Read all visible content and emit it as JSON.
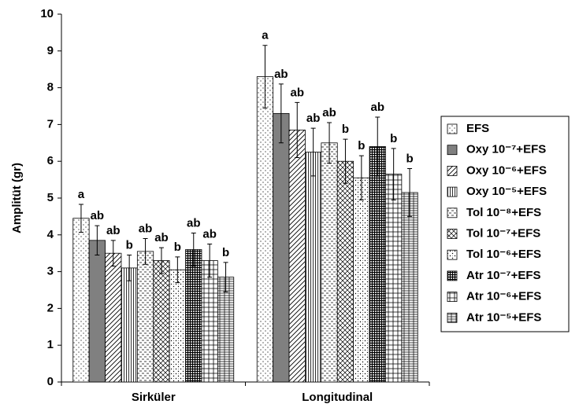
{
  "chart_data": {
    "type": "bar",
    "ylabel": "Amplitüt (gr)",
    "categories": [
      "Sirküler",
      "Longitudinal"
    ],
    "ylim": [
      0,
      10
    ],
    "yticks": [
      0,
      1,
      2,
      3,
      4,
      5,
      6,
      7,
      8,
      9,
      10
    ],
    "series": [
      {
        "name": "EFS",
        "color": "#ffffff",
        "values": [
          4.45,
          8.3
        ],
        "errors": [
          0.38,
          0.85
        ],
        "labels": [
          "a",
          "a"
        ]
      },
      {
        "name": "Oxy 10⁻⁷+EFS",
        "color": "#808080",
        "values": [
          3.85,
          7.3
        ],
        "errors": [
          0.4,
          0.8
        ],
        "labels": [
          "ab",
          "ab"
        ]
      },
      {
        "name": "Oxy 10⁻⁶+EFS",
        "color": "#ffffff",
        "values": [
          3.5,
          6.85
        ],
        "errors": [
          0.35,
          0.75
        ],
        "labels": [
          "ab",
          "ab"
        ]
      },
      {
        "name": "Oxy 10⁻⁵+EFS",
        "color": "#ffffff",
        "values": [
          3.1,
          6.25
        ],
        "errors": [
          0.35,
          0.65
        ],
        "labels": [
          "b",
          "ab"
        ]
      },
      {
        "name": "Tol 10⁻⁸+EFS",
        "color": "#ffffff",
        "values": [
          3.55,
          6.5
        ],
        "errors": [
          0.35,
          0.55
        ],
        "labels": [
          "ab",
          "ab"
        ]
      },
      {
        "name": "Tol 10⁻⁷+EFS",
        "color": "#ffffff",
        "values": [
          3.3,
          6.0
        ],
        "errors": [
          0.35,
          0.6
        ],
        "labels": [
          "ab",
          "b"
        ]
      },
      {
        "name": "Tol 10⁻⁶+EFS",
        "color": "#ffffff",
        "values": [
          3.05,
          5.55
        ],
        "errors": [
          0.35,
          0.6
        ],
        "labels": [
          "b",
          "b"
        ]
      },
      {
        "name": "Atr 10⁻⁷+EFS",
        "color": "#ffffff",
        "values": [
          3.6,
          6.4
        ],
        "errors": [
          0.45,
          0.8
        ],
        "labels": [
          "ab",
          "ab"
        ]
      },
      {
        "name": "Atr 10⁻⁶+EFS",
        "color": "#ffffff",
        "values": [
          3.3,
          5.65
        ],
        "errors": [
          0.45,
          0.7
        ],
        "labels": [
          "ab",
          "b"
        ]
      },
      {
        "name": "Atr 10⁻⁵+EFS",
        "color": "#ffffff",
        "values": [
          2.85,
          5.15
        ],
        "errors": [
          0.4,
          0.65
        ],
        "labels": [
          "b",
          "b"
        ]
      }
    ]
  }
}
